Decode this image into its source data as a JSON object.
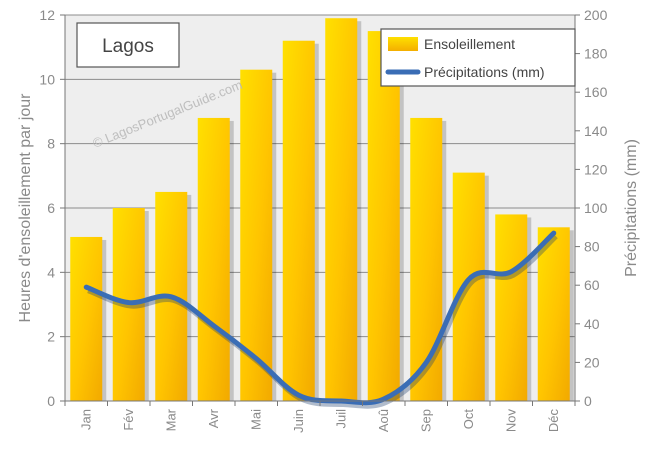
{
  "chart_data": {
    "type": "bar+line",
    "title": "Lagos",
    "watermark": "© LagosPortugalGuide.com",
    "categories": [
      "Jan",
      "Fév",
      "Mar",
      "Avr",
      "Mai",
      "Juin",
      "Juil",
      "Aoû",
      "Sep",
      "Oct",
      "Nov",
      "Déc"
    ],
    "series": [
      {
        "name": "Ensoleillement",
        "type": "bar",
        "axis": "left",
        "values": [
          5.1,
          6.0,
          6.5,
          8.8,
          10.3,
          11.2,
          11.9,
          11.5,
          8.8,
          7.1,
          5.8,
          5.4
        ]
      },
      {
        "name": "Précipitations (mm)",
        "type": "line",
        "axis": "right",
        "values": [
          59,
          51,
          54,
          39,
          22,
          3,
          0,
          1,
          20,
          63,
          67,
          87
        ]
      }
    ],
    "ylabel": "Heures d'ensoleillement par jour",
    "y2label": "Précipitations (mm)",
    "ylim": [
      0,
      12
    ],
    "y2lim": [
      0,
      200
    ],
    "yticks": [
      0,
      2,
      4,
      6,
      8,
      10,
      12
    ],
    "y2ticks": [
      0,
      20,
      40,
      60,
      80,
      100,
      120,
      140,
      160,
      180,
      200
    ],
    "grid": true,
    "legend": "top-right",
    "colors": {
      "bar_light": "#FFE000",
      "bar_dark": "#F2A900",
      "line": "#3A6DB5",
      "grid": "#8C8C8C",
      "plot_bg": "#EEEEEE",
      "text": "#8A8A8A"
    }
  }
}
